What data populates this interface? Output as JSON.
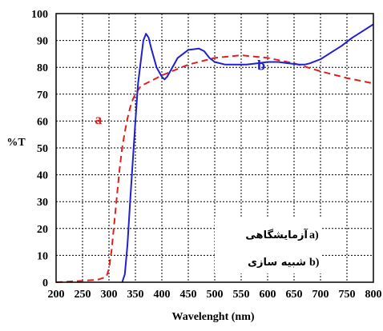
{
  "chart_data": {
    "type": "line",
    "xlabel": "Wavelenght (nm)",
    "ylabel": "%T",
    "xlim": [
      200,
      800
    ],
    "ylim": [
      0,
      100
    ],
    "x_ticks": [
      200,
      250,
      300,
      350,
      400,
      450,
      500,
      550,
      600,
      650,
      700,
      750,
      800
    ],
    "y_ticks": [
      0,
      10,
      20,
      30,
      40,
      50,
      60,
      70,
      80,
      90,
      100
    ],
    "grid": true,
    "legend_position": "bottom-right",
    "legend": [
      {
        "marker": "a)",
        "text": "آزمایشگاهی"
      },
      {
        "marker": "b)",
        "text": "شبیه سازی"
      }
    ],
    "series": [
      {
        "label": "a",
        "color": "#e0201c",
        "style": "dashed",
        "x": [
          200,
          250,
          280,
          295,
          300,
          305,
          310,
          315,
          320,
          325,
          330,
          335,
          340,
          345,
          350,
          360,
          380,
          400,
          450,
          500,
          550,
          600,
          650,
          700,
          750,
          800
        ],
        "y": [
          0,
          0.5,
          1,
          2,
          5,
          12,
          22,
          32,
          42,
          50,
          56,
          61,
          65,
          68,
          70,
          73,
          75,
          77,
          81,
          83.5,
          84.5,
          83.5,
          81.5,
          78.5,
          76,
          74
        ]
      },
      {
        "label": "b",
        "color": "#2020d0",
        "style": "solid",
        "x": [
          325,
          330,
          335,
          340,
          345,
          350,
          355,
          360,
          365,
          370,
          375,
          380,
          390,
          400,
          405,
          410,
          420,
          430,
          450,
          470,
          480,
          490,
          500,
          520,
          540,
          560,
          580,
          600,
          620,
          640,
          660,
          670,
          680,
          700,
          720,
          740,
          760,
          780,
          800
        ],
        "y": [
          0,
          3,
          14,
          30,
          45,
          60,
          74,
          82,
          90,
          92.5,
          91,
          87,
          80,
          76.5,
          75.5,
          76.5,
          80,
          83.5,
          86.5,
          87,
          86,
          83.5,
          82,
          81,
          81,
          81,
          81.5,
          82,
          82,
          81.5,
          81,
          81,
          81.5,
          83,
          85.5,
          88,
          91,
          93.5,
          96
        ]
      }
    ],
    "annotations": [
      {
        "text": "a",
        "x": 280,
        "y": 59,
        "color": "#e0201c"
      },
      {
        "text": "b",
        "x": 588,
        "y": 79,
        "color": "#2020d0"
      }
    ]
  }
}
